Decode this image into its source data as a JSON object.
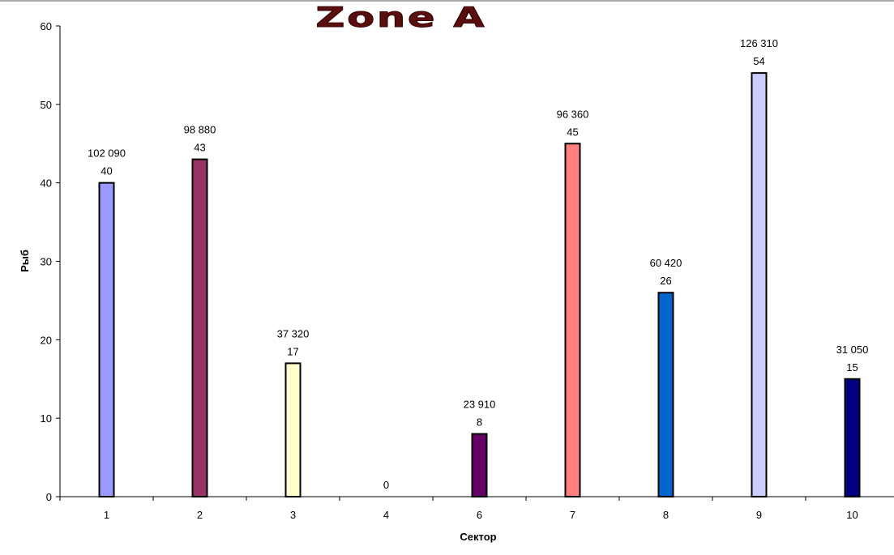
{
  "chart_data": {
    "type": "bar",
    "title": "Zone A",
    "xlabel": "Сектор",
    "ylabel": "Рыб",
    "categories": [
      "1",
      "2",
      "3",
      "4",
      "6",
      "7",
      "8",
      "9",
      "10"
    ],
    "values": [
      40,
      43,
      17,
      0,
      8,
      45,
      26,
      54,
      15
    ],
    "secondary_labels": [
      "102 090",
      "98 880",
      "37 320",
      "",
      "23 910",
      "96 360",
      "60 420",
      "126 310",
      "31 050"
    ],
    "colors": [
      "#9999ff",
      "#993366",
      "#ffffcc",
      "#ccffff",
      "#660066",
      "#ff8080",
      "#0066cc",
      "#ccccff",
      "#000080"
    ],
    "ylim": [
      0,
      60
    ],
    "yticks": [
      0,
      10,
      20,
      30,
      40,
      50,
      60
    ],
    "grid": false,
    "legend": "none"
  }
}
